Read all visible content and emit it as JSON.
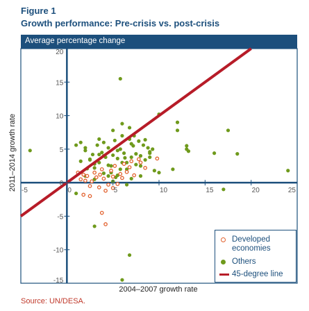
{
  "figure_label": "Figure 1",
  "figure_title": "Growth performance: Pre-crisis vs. post-crisis",
  "band_label": "Average percentage change",
  "source": "Source: UN/DESA.",
  "colors": {
    "brand_blue": "#1c4f7c",
    "developed": "#e2622f",
    "others": "#6f9a1c",
    "reference_line": "#b71c28"
  },
  "chart_data": {
    "type": "scatter",
    "xlabel": "2004–2007 growth rate",
    "ylabel": "2011–2014 growth rate",
    "xlim": [
      -5,
      25
    ],
    "ylim": [
      -15,
      20
    ],
    "xticks": [
      -5,
      0,
      5,
      10,
      15,
      20,
      25
    ],
    "yticks": [
      -15,
      -10,
      -5,
      0,
      5,
      10,
      15,
      20
    ],
    "grid": false,
    "legend_position": "bottom-right",
    "reference_line": {
      "name": "45-degree line",
      "slope": 1,
      "intercept": 0
    },
    "series": [
      {
        "name": "Developed economies",
        "marker": "open-circle",
        "x": [
          1.5,
          1.8,
          2.0,
          2.2,
          2.5,
          2.7,
          3.0,
          3.2,
          3.5,
          3.6,
          3.8,
          4.0,
          4.2,
          4.5,
          4.8,
          5.0,
          5.2,
          5.5,
          5.8,
          6.0,
          6.2,
          6.5,
          6.8,
          7.0,
          7.3,
          7.8,
          8.0,
          8.5,
          9.8,
          1.8,
          2.5,
          3.8,
          4.2,
          5.0,
          1.2
        ],
        "y": [
          0.5,
          1.2,
          0.3,
          1.0,
          -0.5,
          0.2,
          1.5,
          0.8,
          -0.7,
          1.2,
          2.0,
          0.6,
          -1.2,
          -0.3,
          1.8,
          0.9,
          2.5,
          -0.2,
          1.3,
          0.7,
          2.8,
          1.6,
          2.3,
          3.2,
          1.1,
          3.5,
          3.0,
          2.2,
          3.6,
          -1.8,
          -2.0,
          -4.5,
          -6.2,
          -0.8,
          1.5
        ]
      },
      {
        "name": "Others",
        "marker": "filled-circle",
        "x": [
          -4.0,
          1.0,
          1.5,
          2.0,
          2.2,
          2.5,
          2.8,
          3.0,
          3.3,
          3.5,
          3.8,
          4.0,
          4.2,
          4.5,
          4.8,
          5.0,
          5.2,
          5.5,
          5.8,
          6.0,
          6.2,
          6.5,
          6.8,
          7.0,
          7.2,
          7.5,
          7.8,
          8.0,
          8.3,
          8.5,
          8.8,
          9.0,
          9.3,
          9.5,
          10.0,
          2.0,
          3.0,
          3.5,
          4.0,
          4.5,
          5.0,
          5.5,
          6.0,
          6.5,
          7.0,
          7.5,
          8.0,
          8.5,
          9.0,
          4.8,
          5.3,
          5.8,
          6.3,
          6.8,
          7.3,
          3.0,
          4.0,
          5.0,
          6.0,
          7.0,
          8.0,
          9.0,
          10.0,
          12.0,
          13.0,
          11.5,
          12.0,
          13.0,
          13.2,
          16.0,
          17.5,
          18.5,
          24.0,
          17.0,
          3.0,
          6.8,
          6.0,
          5.8,
          6.5,
          5.5,
          1.0,
          1.5,
          2.0,
          2.5,
          3.5,
          4.5,
          5.0
        ],
        "y": [
          4.8,
          5.6,
          3.2,
          4.8,
          2.1,
          3.5,
          4.2,
          2.8,
          5.6,
          3.0,
          4.5,
          6.0,
          3.8,
          5.2,
          2.5,
          4.1,
          6.3,
          3.6,
          5.0,
          7.0,
          4.4,
          2.0,
          6.5,
          3.8,
          5.5,
          2.7,
          6.2,
          4.0,
          5.6,
          3.4,
          5.2,
          3.8,
          5.0,
          1.8,
          10.2,
          1.0,
          2.2,
          6.5,
          4.0,
          2.6,
          7.8,
          4.8,
          8.8,
          3.0,
          5.8,
          4.3,
          2.5,
          6.4,
          4.6,
          1.5,
          0.8,
          2.0,
          3.7,
          8.2,
          7.0,
          0.5,
          1.4,
          0.2,
          3.0,
          0.6,
          1.0,
          4.4,
          1.5,
          9.0,
          5.5,
          2.0,
          7.8,
          5.0,
          4.7,
          4.4,
          7.8,
          4.3,
          1.8,
          -1.0,
          -6.5,
          -10.8,
          -14.5,
          15.5,
          -0.3,
          1.1,
          -1.6,
          6.0,
          5.2,
          3.4,
          4.2,
          1.0,
          0.2
        ]
      }
    ]
  },
  "legend": {
    "developed": "Developed economies",
    "others": "Others",
    "line": "45-degree line"
  }
}
